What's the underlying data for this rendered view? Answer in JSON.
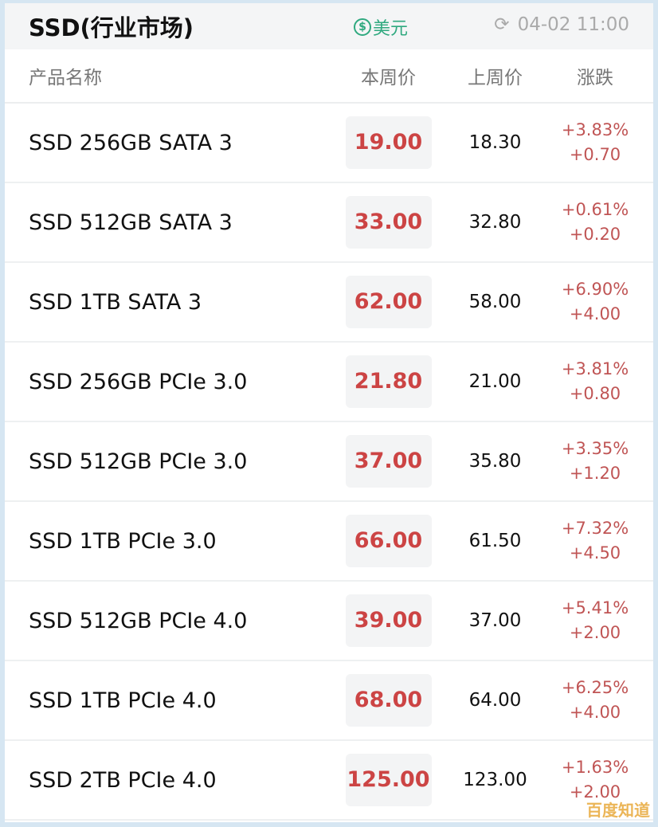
{
  "header": {
    "title": "SSD(行业市场)",
    "currency_icon": "dollar-circle-icon",
    "currency": "美元",
    "refresh_icon": "refresh-icon",
    "timestamp": "04-02 11:00"
  },
  "columns": [
    "产品名称",
    "本周价",
    "上周价",
    "涨跌"
  ],
  "rows": [
    {
      "name": "SSD 256GB SATA 3",
      "current": "19.00",
      "previous": "18.30",
      "pct": "+3.83%",
      "diff": "+0.70"
    },
    {
      "name": "SSD 512GB SATA 3",
      "current": "33.00",
      "previous": "32.80",
      "pct": "+0.61%",
      "diff": "+0.20"
    },
    {
      "name": "SSD 1TB SATA 3",
      "current": "62.00",
      "previous": "58.00",
      "pct": "+6.90%",
      "diff": "+4.00"
    },
    {
      "name": "SSD 256GB PCIe 3.0",
      "current": "21.80",
      "previous": "21.00",
      "pct": "+3.81%",
      "diff": "+0.80"
    },
    {
      "name": "SSD 512GB PCIe 3.0",
      "current": "37.00",
      "previous": "35.80",
      "pct": "+3.35%",
      "diff": "+1.20"
    },
    {
      "name": "SSD 1TB PCIe 3.0",
      "current": "66.00",
      "previous": "61.50",
      "pct": "+7.32%",
      "diff": "+4.50"
    },
    {
      "name": "SSD 512GB PCIe 4.0",
      "current": "39.00",
      "previous": "37.00",
      "pct": "+5.41%",
      "diff": "+2.00"
    },
    {
      "name": "SSD 1TB PCIe 4.0",
      "current": "68.00",
      "previous": "64.00",
      "pct": "+6.25%",
      "diff": "+4.00"
    },
    {
      "name": "SSD 2TB PCIe 4.0",
      "current": "125.00",
      "previous": "123.00",
      "pct": "+1.63%",
      "diff": "+2.00"
    }
  ],
  "watermark": "百度知道",
  "colors": {
    "up": "#c05555",
    "current_price": "#cc4444",
    "currency": "#2fa97f"
  }
}
